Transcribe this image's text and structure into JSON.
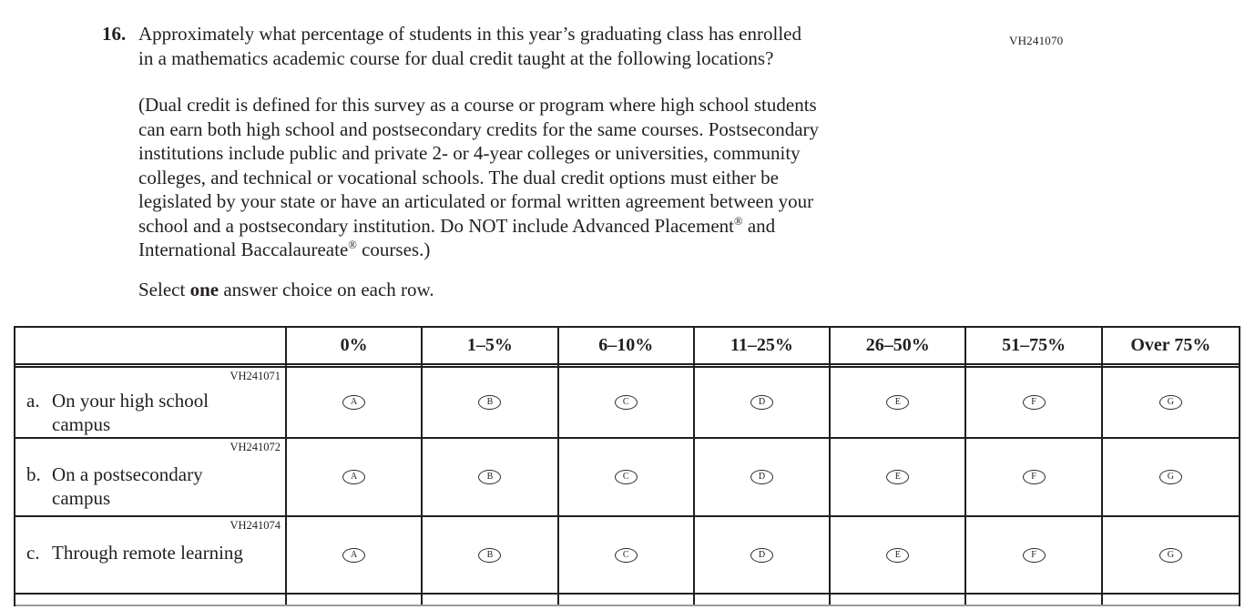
{
  "page_code": "VH241070",
  "question": {
    "number": "16.",
    "line1": "Approximately what percentage of students in this year’s graduating class has enrolled",
    "line2": "in a mathematics academic course for dual credit taught at the following locations?"
  },
  "paragraph": {
    "line1": "(Dual credit is defined for this survey as a course or program where high school students",
    "line2": "can earn both high school and postsecondary credits for the same courses. Postsecondary",
    "line3": "institutions include public and private 2- or 4-year colleges or universities, community",
    "line4": "colleges, and technical or vocational schools. The dual credit options must either be",
    "line5": "legislated by your state or have an articulated or formal written agreement between your",
    "line6_pre": "school and a postsecondary institution. Do NOT include Advanced Placement",
    "line6_post": " and",
    "line7_pre": "International Baccalaureate",
    "line7_post": " courses.)",
    "reg_mark": "®"
  },
  "instruction": {
    "prefix": "Select ",
    "bold": "one",
    "suffix": " answer choice on each row."
  },
  "table": {
    "columns": [
      "0%",
      "1–5%",
      "6–10%",
      "11–25%",
      "26–50%",
      "51–75%",
      "Over 75%"
    ],
    "option_letters": [
      "A",
      "B",
      "C",
      "D",
      "E",
      "F",
      "G"
    ],
    "rows": [
      {
        "code": "VH241071",
        "letter": "a.",
        "label": "On your high school campus"
      },
      {
        "code": "VH241072",
        "letter": "b.",
        "label": "On a postsecondary campus"
      },
      {
        "code": "VH241074",
        "letter": "c.",
        "label": "Through remote learning"
      }
    ]
  }
}
